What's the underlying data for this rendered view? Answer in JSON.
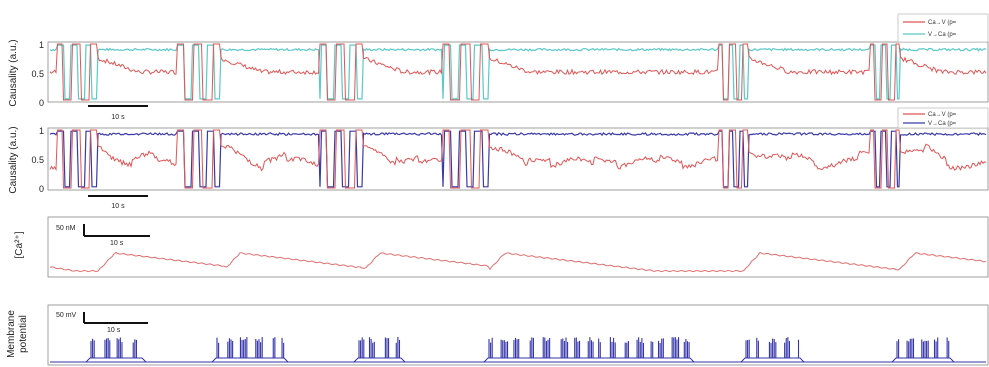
{
  "colors": {
    "red": "#e05555",
    "darkred": "#9b2a2a",
    "cyan": "#5cc8c8",
    "blue": "#3a3aa8",
    "ca": "#e07070",
    "spike": "#3333aa",
    "frame": "#888888"
  },
  "chart_data": [
    {
      "type": "line",
      "panel": "causality-1",
      "ylabel": "Causality (a.u.)",
      "yticks": [
        "0",
        "0.5",
        "1"
      ],
      "ylim": [
        0,
        1
      ],
      "legend": [
        "Ca→V (p=",
        "V→Ca (p="
      ],
      "legend_position": "top-right",
      "scalebar": "10 s",
      "series": [
        {
          "name": "Ca→V (p=",
          "color": "red",
          "baseline": 0.5
        },
        {
          "name": "V→Ca (p=",
          "color": "cyan",
          "baseline": 0.9
        }
      ]
    },
    {
      "type": "line",
      "panel": "causality-2",
      "ylabel": "Causality (a.u.)",
      "yticks": [
        "0",
        "0.5",
        "1"
      ],
      "ylim": [
        0,
        1
      ],
      "legend": [
        "Ca→V (p=",
        "V→Ca (p="
      ],
      "legend_position": "top-right",
      "scalebar": "10 s",
      "series": [
        {
          "name": "Ca→V (p=",
          "color": "red",
          "baseline": 0.4
        },
        {
          "name": "V→Ca (p=",
          "color": "blue",
          "baseline": 0.93
        }
      ]
    },
    {
      "type": "line",
      "panel": "calcium",
      "ylabel": "[Ca²⁺]",
      "scalebar_y": "50 nM",
      "scalebar_x": "10 s"
    },
    {
      "type": "line",
      "panel": "membrane",
      "ylabel": [
        "Membrane",
        "potential"
      ],
      "scalebar_y": "50 mV",
      "scalebar_x": "10 s"
    }
  ]
}
